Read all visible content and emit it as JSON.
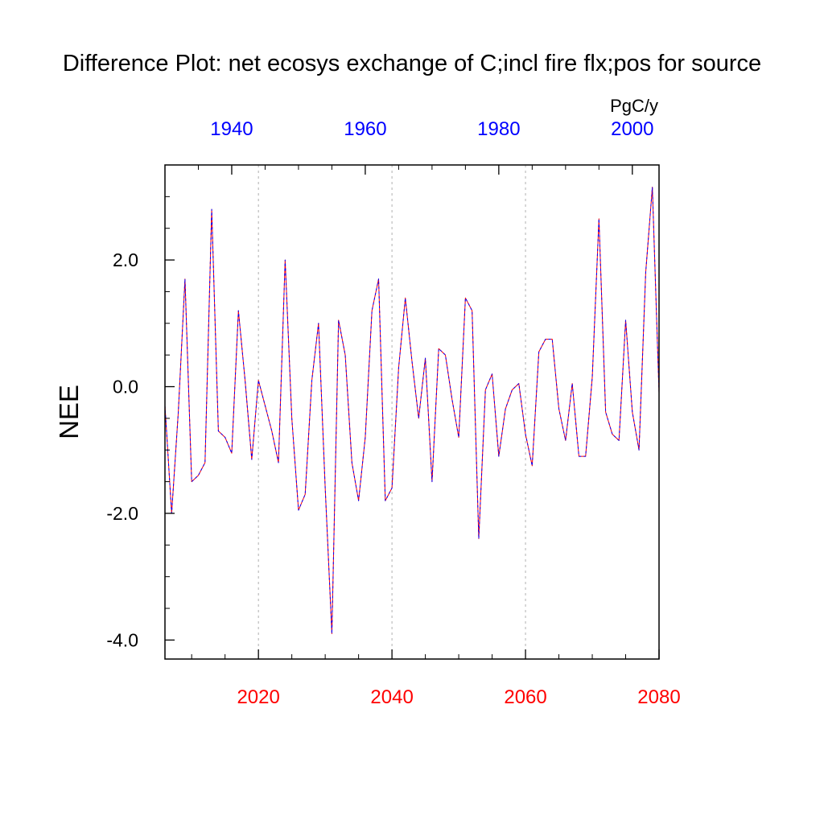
{
  "chart_data": {
    "type": "line",
    "title": "Difference Plot: net ecosys exchange of C;incl fire flx;pos for source",
    "ylabel": "NEE",
    "units": "PgC/y",
    "ylim": [
      -4.3,
      3.5
    ],
    "yticks": [
      {
        "value": -4.0,
        "label": "-4.0"
      },
      {
        "value": -2.0,
        "label": "-2.0"
      },
      {
        "value": 0.0,
        "label": "0.0"
      },
      {
        "value": 2.0,
        "label": "2.0"
      }
    ],
    "x_bottom": {
      "range": [
        2006,
        2080
      ],
      "color": "#ff0000",
      "ticks": [
        {
          "value": 2020,
          "label": "2020"
        },
        {
          "value": 2040,
          "label": "2040"
        },
        {
          "value": 2060,
          "label": "2060"
        },
        {
          "value": 2080,
          "label": "2080"
        }
      ]
    },
    "x_top": {
      "range": [
        1930,
        2004
      ],
      "color": "#0000ff",
      "ticks": [
        {
          "value": 1940,
          "label": "1940"
        },
        {
          "value": 1960,
          "label": "1960"
        },
        {
          "value": 1980,
          "label": "1980"
        },
        {
          "value": 2000,
          "label": "2000"
        }
      ]
    },
    "grid": "vertical dashed at bottom-axis major ticks",
    "series": [
      {
        "color": "#ff0000",
        "style": "solid",
        "x": [
          2006,
          2007,
          2008,
          2009,
          2010,
          2011,
          2012,
          2013,
          2014,
          2015,
          2016,
          2017,
          2018,
          2019,
          2020,
          2021,
          2022,
          2023,
          2024,
          2025,
          2026,
          2027,
          2028,
          2029,
          2030,
          2031,
          2032,
          2033,
          2034,
          2035,
          2036,
          2037,
          2038,
          2039,
          2040,
          2041,
          2042,
          2043,
          2044,
          2045,
          2046,
          2047,
          2048,
          2049,
          2050,
          2051,
          2052,
          2053,
          2054,
          2055,
          2056,
          2057,
          2058,
          2059,
          2060,
          2061,
          2062,
          2063,
          2064,
          2065,
          2066,
          2067,
          2068,
          2069,
          2070,
          2071,
          2072,
          2073,
          2074,
          2075,
          2076,
          2077,
          2078,
          2079,
          2080
        ],
        "y": [
          -0.3,
          -2.0,
          -0.4,
          1.7,
          -1.5,
          -1.4,
          -1.2,
          2.8,
          -0.7,
          -0.8,
          -1.05,
          1.2,
          0.1,
          -1.15,
          0.1,
          -0.3,
          -0.7,
          -1.2,
          2.0,
          -0.5,
          -1.95,
          -1.7,
          0.1,
          1.0,
          -1.6,
          -3.9,
          1.05,
          0.5,
          -1.2,
          -1.8,
          -0.8,
          1.2,
          1.7,
          -1.8,
          -1.6,
          0.3,
          1.4,
          0.4,
          -0.5,
          0.45,
          -1.5,
          0.6,
          0.5,
          -0.2,
          -0.8,
          1.4,
          1.2,
          -2.4,
          -0.05,
          0.2,
          -1.1,
          -0.35,
          -0.05,
          0.05,
          -0.75,
          -1.25,
          0.55,
          0.75,
          0.75,
          -0.35,
          -0.85,
          0.05,
          -1.1,
          -1.1,
          0.15,
          2.65,
          -0.4,
          -0.75,
          -0.85,
          1.05,
          -0.4,
          -1.0,
          1.8,
          3.15,
          -0.1
        ]
      },
      {
        "color": "#0000ff",
        "style": "dashed",
        "x": [
          2006,
          2007,
          2008,
          2009,
          2010,
          2011,
          2012,
          2013,
          2014,
          2015,
          2016,
          2017,
          2018,
          2019,
          2020,
          2021,
          2022,
          2023,
          2024,
          2025,
          2026,
          2027,
          2028,
          2029,
          2030,
          2031,
          2032,
          2033,
          2034,
          2035,
          2036,
          2037,
          2038,
          2039,
          2040,
          2041,
          2042,
          2043,
          2044,
          2045,
          2046,
          2047,
          2048,
          2049,
          2050,
          2051,
          2052,
          2053,
          2054,
          2055,
          2056,
          2057,
          2058,
          2059,
          2060,
          2061,
          2062,
          2063,
          2064,
          2065,
          2066,
          2067,
          2068,
          2069,
          2070,
          2071,
          2072,
          2073,
          2074,
          2075,
          2076,
          2077,
          2078,
          2079,
          2080
        ],
        "y": [
          -0.3,
          -2.0,
          -0.4,
          1.7,
          -1.5,
          -1.4,
          -1.2,
          2.8,
          -0.7,
          -0.8,
          -1.05,
          1.2,
          0.1,
          -1.15,
          0.1,
          -0.3,
          -0.7,
          -1.2,
          2.0,
          -0.5,
          -1.95,
          -1.7,
          0.1,
          1.0,
          -1.6,
          -3.9,
          1.05,
          0.5,
          -1.2,
          -1.8,
          -0.8,
          1.2,
          1.7,
          -1.8,
          -1.6,
          0.3,
          1.4,
          0.4,
          -0.5,
          0.45,
          -1.5,
          0.6,
          0.5,
          -0.2,
          -0.8,
          1.4,
          1.2,
          -2.4,
          -0.05,
          0.2,
          -1.1,
          -0.35,
          -0.05,
          0.05,
          -0.75,
          -1.25,
          0.55,
          0.75,
          0.75,
          -0.35,
          -0.85,
          0.05,
          -1.1,
          -1.1,
          0.15,
          2.65,
          -0.4,
          -0.75,
          -0.85,
          1.05,
          -0.4,
          -1.0,
          1.8,
          3.15,
          -0.1
        ]
      }
    ]
  }
}
